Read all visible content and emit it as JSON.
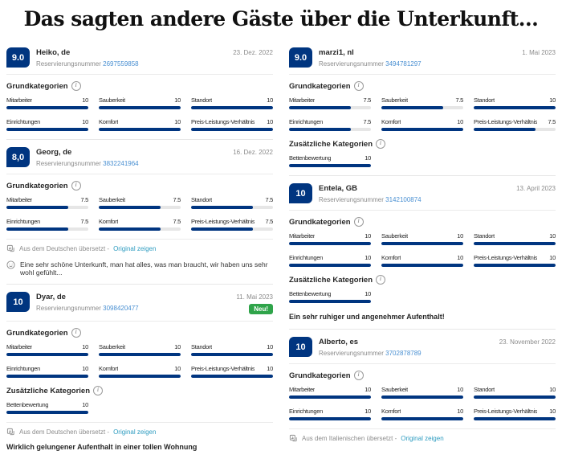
{
  "page_title": "Das sagten andere Gäste über die Unterkunft...",
  "labels": {
    "reservation": "Reservierungsnummer",
    "basic_categories": "Grundkategorien",
    "additional_categories": "Zusätzliche Kategorien",
    "new_badge": "Neu!",
    "show_original": "Original zeigen"
  },
  "colors": {
    "score_navy": "#003580",
    "bar_navy": "#003580",
    "bar_track_gray": "#e6e6e6",
    "new_badge_green": "#2fa44a",
    "reservation_link_blue": "#4a90d2",
    "show_original_cyan": "#2e9cc0"
  },
  "columns": {
    "left": [
      {
        "score": "9.0",
        "name": "Heiko, de",
        "reservation_number": "2697559858",
        "date": "23. Dez. 2022",
        "new": false,
        "basic": [
          {
            "label": "Mitarbeiter",
            "value": 10
          },
          {
            "label": "Sauberkeit",
            "value": 10
          },
          {
            "label": "Standort",
            "value": 10
          },
          {
            "label": "Einrichtungen",
            "value": 10
          },
          {
            "label": "Komfort",
            "value": 10
          },
          {
            "label": "Preis-Leistungs-Verhältnis",
            "value": 10
          }
        ]
      },
      {
        "score": "8,0",
        "name": "Georg, de",
        "reservation_number": "3832241964",
        "date": "16. Dez. 2022",
        "new": false,
        "basic": [
          {
            "label": "Mitarbeiter",
            "value": 7.5
          },
          {
            "label": "Sauberkeit",
            "value": 7.5
          },
          {
            "label": "Standort",
            "value": 7.5
          },
          {
            "label": "Einrichtungen",
            "value": 7.5
          },
          {
            "label": "Komfort",
            "value": 7.5
          },
          {
            "label": "Preis-Leistungs-Verhältnis",
            "value": 7.5
          }
        ],
        "translated_from": "Aus dem Deutschen übersetzt -",
        "comment": {
          "style": "smiley",
          "text": "Eine sehr schöne Unterkunft, man hat alles, was man braucht, wir haben uns sehr wohl gefühlt..."
        }
      },
      {
        "score": "10",
        "name": "Dyar, de",
        "reservation_number": "3098420477",
        "date": "11. Mai 2023",
        "new": true,
        "basic": [
          {
            "label": "Mitarbeiter",
            "value": 10
          },
          {
            "label": "Sauberkeit",
            "value": 10
          },
          {
            "label": "Standort",
            "value": 10
          },
          {
            "label": "Einrichtungen",
            "value": 10
          },
          {
            "label": "Komfort",
            "value": 10
          },
          {
            "label": "Preis-Leistungs-Verhältnis",
            "value": 10
          }
        ],
        "additional": [
          {
            "label": "Bettenbewertung",
            "value": 10
          }
        ],
        "translated_from": "Aus dem Deutschen übersetzt -",
        "comment": {
          "style": "bold",
          "text": "Wirklich gelungener Aufenthalt in einer tollen Wohnung"
        }
      }
    ],
    "right": [
      {
        "score": "9.0",
        "name": "marzi1, nl",
        "reservation_number": "3494781297",
        "date": "1. Mai 2023",
        "new": false,
        "basic": [
          {
            "label": "Mitarbeiter",
            "value": 7.5
          },
          {
            "label": "Sauberkeit",
            "value": 7.5
          },
          {
            "label": "Standort",
            "value": 10
          },
          {
            "label": "Einrichtungen",
            "value": 7.5
          },
          {
            "label": "Komfort",
            "value": 10
          },
          {
            "label": "Preis-Leistungs-Verhältnis",
            "value": 7.5
          }
        ],
        "additional": [
          {
            "label": "Bettenbewertung",
            "value": 10
          }
        ]
      },
      {
        "score": "10",
        "name": "Entela, GB",
        "reservation_number": "3142100874",
        "date": "13. April 2023",
        "new": false,
        "basic": [
          {
            "label": "Mitarbeiter",
            "value": 10
          },
          {
            "label": "Sauberkeit",
            "value": 10
          },
          {
            "label": "Standort",
            "value": 10
          },
          {
            "label": "Einrichtungen",
            "value": 10
          },
          {
            "label": "Komfort",
            "value": 10
          },
          {
            "label": "Preis-Leistungs-Verhältnis",
            "value": 10
          }
        ],
        "additional": [
          {
            "label": "Bettenbewertung",
            "value": 10
          }
        ],
        "comment": {
          "style": "bold",
          "text": "Ein sehr ruhiger und angenehmer Aufenthalt!"
        }
      },
      {
        "score": "10",
        "name": "Alberto, es",
        "reservation_number": "3702878789",
        "date": "23. November 2022",
        "new": false,
        "basic": [
          {
            "label": "Mitarbeiter",
            "value": 10
          },
          {
            "label": "Sauberkeit",
            "value": 10
          },
          {
            "label": "Standort",
            "value": 10
          },
          {
            "label": "Einrichtungen",
            "value": 10
          },
          {
            "label": "Komfort",
            "value": 10
          },
          {
            "label": "Preis-Leistungs-Verhältnis",
            "value": 10
          }
        ],
        "translated_from": "Aus dem Italienischen übersetzt -"
      }
    ]
  }
}
